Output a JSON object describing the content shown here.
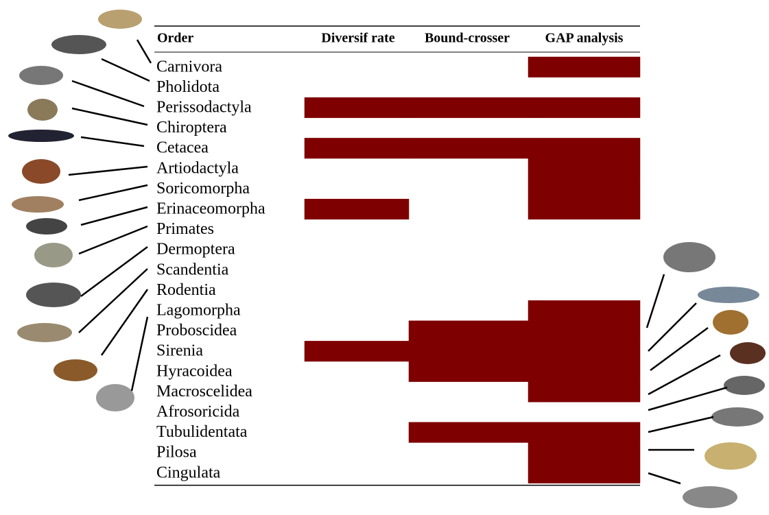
{
  "table": {
    "header": [
      "Order",
      "Diversif rate",
      "Bound-crosser",
      "GAP analysis"
    ],
    "fill_color": "#7f0000",
    "rows": [
      {
        "label": "Carnivora",
        "filled": [
          false,
          false,
          true
        ]
      },
      {
        "label": "Pholidota",
        "filled": [
          false,
          false,
          false
        ]
      },
      {
        "label": "Perissodactyla",
        "filled": [
          true,
          true,
          true
        ]
      },
      {
        "label": "Chiroptera",
        "filled": [
          false,
          false,
          false
        ]
      },
      {
        "label": "Cetacea",
        "filled": [
          true,
          true,
          true
        ]
      },
      {
        "label": "Artiodactyla",
        "filled": [
          false,
          false,
          true
        ]
      },
      {
        "label": "Soricomorpha",
        "filled": [
          false,
          false,
          true
        ]
      },
      {
        "label": "Erinaceomorpha",
        "filled": [
          true,
          false,
          true
        ]
      },
      {
        "label": "Primates",
        "filled": [
          false,
          false,
          false
        ]
      },
      {
        "label": "Dermoptera",
        "filled": [
          false,
          false,
          false
        ]
      },
      {
        "label": "Scandentia",
        "filled": [
          false,
          false,
          false
        ]
      },
      {
        "label": "Rodentia",
        "filled": [
          false,
          false,
          false
        ]
      },
      {
        "label": "Lagomorpha",
        "filled": [
          false,
          false,
          true
        ]
      },
      {
        "label": "Proboscidea",
        "filled": [
          false,
          true,
          true
        ]
      },
      {
        "label": "Sirenia",
        "filled": [
          true,
          true,
          true
        ]
      },
      {
        "label": "Hyracoidea",
        "filled": [
          false,
          true,
          true
        ]
      },
      {
        "label": "Macroscelidea",
        "filled": [
          false,
          false,
          true
        ]
      },
      {
        "label": "Afrosoricida",
        "filled": [
          false,
          false,
          false
        ]
      },
      {
        "label": "Tubulidentata",
        "filled": [
          false,
          true,
          true
        ]
      },
      {
        "label": "Pilosa",
        "filled": [
          false,
          false,
          true
        ]
      },
      {
        "label": "Cingulata",
        "filled": [
          false,
          false,
          true
        ]
      }
    ]
  }
}
